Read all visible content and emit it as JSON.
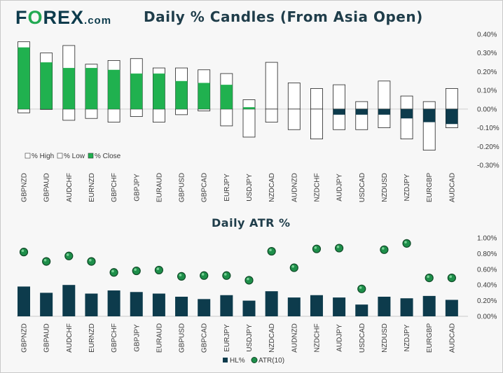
{
  "brand": {
    "name_prefix": "F",
    "name_o": "O",
    "name_suffix": "REX",
    "domain": ".com"
  },
  "colors": {
    "brand_navy": "#0d3b4c",
    "brand_green": "#22a952",
    "close_green": "#20b14f",
    "close_navy": "#0d3b4c",
    "atr_dot": "#1e8f4a"
  },
  "chart_data": [
    {
      "type": "candlestick",
      "title": "Daily % Candles (From Asia Open)",
      "categories": [
        "GBPNZD",
        "GBPAUD",
        "AUDCHF",
        "EURNZD",
        "GBPCHF",
        "GBPJPY",
        "EURAUD",
        "GBPUSD",
        "GBPCAD",
        "EURJPY",
        "USDJPY",
        "NZDCAD",
        "AUDNZD",
        "NZDCHF",
        "AUDJPY",
        "USDCAD",
        "NZDUSD",
        "NZDJPY",
        "EURGBP",
        "AUDCAD"
      ],
      "series": [
        {
          "name": "% High",
          "values": [
            0.36,
            0.3,
            0.34,
            0.24,
            0.26,
            0.27,
            0.22,
            0.22,
            0.21,
            0.19,
            0.05,
            0.25,
            0.14,
            0.11,
            0.13,
            0.04,
            0.15,
            0.07,
            0.04,
            0.11
          ]
        },
        {
          "name": "% Low",
          "values": [
            -0.02,
            0.0,
            -0.06,
            -0.05,
            -0.07,
            -0.04,
            -0.07,
            -0.03,
            -0.01,
            -0.09,
            -0.15,
            -0.07,
            -0.11,
            -0.16,
            -0.11,
            -0.11,
            -0.1,
            -0.16,
            -0.22,
            -0.1
          ]
        },
        {
          "name": "% Close",
          "values": [
            0.33,
            0.25,
            0.22,
            0.22,
            0.21,
            0.19,
            0.19,
            0.15,
            0.14,
            0.13,
            0.01,
            0.0,
            0.0,
            0.0,
            -0.03,
            -0.03,
            -0.03,
            -0.05,
            -0.07,
            -0.08
          ]
        }
      ],
      "ylim": [
        -0.3,
        0.4
      ],
      "yticks": [
        "0.40%",
        "0.30%",
        "0.20%",
        "0.10%",
        "0.00%",
        "-0.10%",
        "-0.20%",
        "-0.30%"
      ],
      "legend": [
        "% High",
        "% Low",
        "% Close"
      ]
    },
    {
      "type": "bar+scatter",
      "title": "Daily ATR %",
      "categories": [
        "GBPNZD",
        "GBPAUD",
        "AUDCHF",
        "EURNZD",
        "GBPCHF",
        "GBPJPY",
        "EURAUD",
        "GBPUSD",
        "GBPCAD",
        "EURJPY",
        "USDJPY",
        "NZDCAD",
        "AUDNZD",
        "NZDCHF",
        "AUDJPY",
        "USDCAD",
        "NZDUSD",
        "NZDJPY",
        "EURGBP",
        "AUDCAD"
      ],
      "series": [
        {
          "name": "HL%",
          "values": [
            0.38,
            0.3,
            0.4,
            0.29,
            0.33,
            0.31,
            0.29,
            0.25,
            0.22,
            0.27,
            0.2,
            0.32,
            0.24,
            0.27,
            0.24,
            0.15,
            0.25,
            0.23,
            0.26,
            0.21
          ]
        },
        {
          "name": "ATR(10)",
          "values": [
            0.82,
            0.7,
            0.77,
            0.7,
            0.56,
            0.58,
            0.59,
            0.51,
            0.52,
            0.52,
            0.46,
            0.83,
            0.62,
            0.86,
            0.87,
            0.35,
            0.85,
            0.93,
            0.49,
            0.49
          ]
        }
      ],
      "ylim": [
        0.0,
        1.0
      ],
      "yticks": [
        "1.00%",
        "0.80%",
        "0.60%",
        "0.40%",
        "0.20%",
        "0.00%"
      ],
      "legend": [
        "HL%",
        "ATR(10)"
      ]
    }
  ]
}
